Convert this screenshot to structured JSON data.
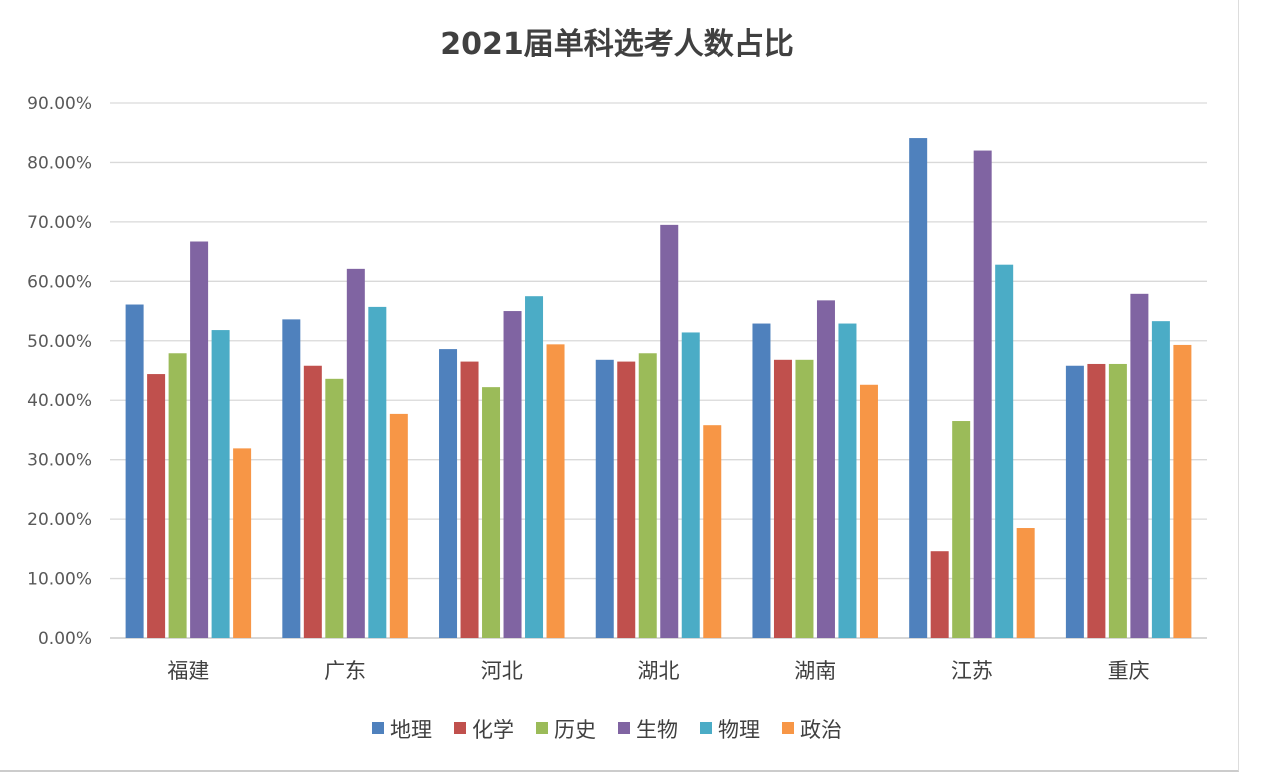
{
  "chart_data": {
    "type": "bar",
    "title": "2021届单科选考人数占比",
    "xlabel": "",
    "ylabel": "",
    "ylim": [
      0,
      90
    ],
    "y_tick_step": 10,
    "y_tick_format": "percent_2dp",
    "grid": true,
    "legend_position": "bottom",
    "categories": [
      "福建",
      "广东",
      "河北",
      "湖北",
      "湖南",
      "江苏",
      "重庆"
    ],
    "series": [
      {
        "name": "地理",
        "color": "#4f81bd",
        "values": [
          56.1,
          53.6,
          48.6,
          46.8,
          52.9,
          84.1,
          45.8
        ]
      },
      {
        "name": "化学",
        "color": "#c0504d",
        "values": [
          44.4,
          45.8,
          46.5,
          46.5,
          46.8,
          14.6,
          46.1
        ]
      },
      {
        "name": "历史",
        "color": "#9bbb59",
        "values": [
          47.9,
          43.6,
          42.2,
          47.9,
          46.8,
          36.5,
          46.1
        ]
      },
      {
        "name": "生物",
        "color": "#8064a2",
        "values": [
          66.7,
          62.1,
          55.0,
          69.5,
          56.8,
          82.0,
          57.9
        ]
      },
      {
        "name": "物理",
        "color": "#4bacc6",
        "values": [
          51.8,
          55.7,
          57.5,
          51.4,
          52.9,
          62.8,
          53.3
        ]
      },
      {
        "name": "政治",
        "color": "#f79646",
        "values": [
          31.9,
          37.7,
          49.4,
          35.8,
          42.6,
          18.5,
          49.3
        ]
      }
    ]
  }
}
